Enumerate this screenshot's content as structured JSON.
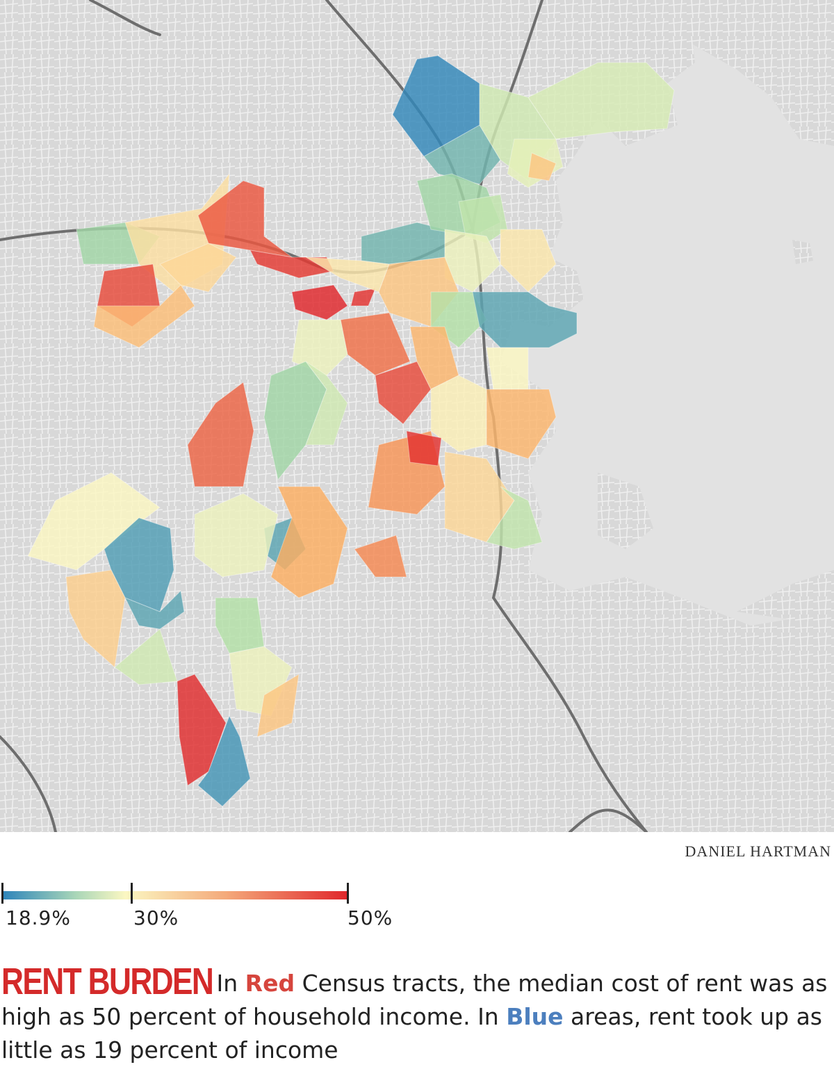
{
  "credit": "DANIEL HARTMAN",
  "legend": {
    "min_label": "18.9%",
    "mid_label": "30%",
    "max_label": "50%",
    "min_value": 18.9,
    "mid_value": 30,
    "max_value": 50,
    "colors": {
      "low": "#2b83ba",
      "mid": "#fbf7c2",
      "high": "#e0262b"
    }
  },
  "caption": {
    "title": "RENT BURDEN",
    "part1": "In ",
    "red_word": "Red",
    "part2": " Census tracts, the median cost of rent was as high as 50 percent of household income. In ",
    "blue_word": "Blue",
    "part3": " areas, rent took up as little as 19 percent of income"
  },
  "colors": {
    "title_red": "#d42a2a",
    "red_word": "#d6453d",
    "blue_word": "#4c7fbe",
    "water": "#e3e3e3",
    "land": "#d9d9d9",
    "road": "#ffffff",
    "highway": "#6f6f6f"
  },
  "tracts": [
    {
      "id": "charlestown-navy",
      "v": 19.2
    },
    {
      "id": "charlestown-w",
      "v": 22
    },
    {
      "id": "charlestown-c",
      "v": 27
    },
    {
      "id": "eastie-n",
      "v": 27.5
    },
    {
      "id": "eastie-c",
      "v": 28.5
    },
    {
      "id": "eastie-s",
      "v": 36
    },
    {
      "id": "brighton-w",
      "v": 24
    },
    {
      "id": "brighton-c",
      "v": 33
    },
    {
      "id": "brighton-sw",
      "v": 47
    },
    {
      "id": "brighton-s",
      "v": 37
    },
    {
      "id": "allston-n",
      "v": 46
    },
    {
      "id": "allston-e",
      "v": 48.5
    },
    {
      "id": "allston-c",
      "v": 34
    },
    {
      "id": "fenway-a",
      "v": 50
    },
    {
      "id": "fenway-b",
      "v": 49
    },
    {
      "id": "backbay",
      "v": 22
    },
    {
      "id": "beacon",
      "v": 32
    },
    {
      "id": "westend",
      "v": 24
    },
    {
      "id": "northend",
      "v": 26
    },
    {
      "id": "downtown",
      "v": 29
    },
    {
      "id": "southend-a",
      "v": 36
    },
    {
      "id": "southend-b",
      "v": 25
    },
    {
      "id": "seaport",
      "v": 21
    },
    {
      "id": "southie-w",
      "v": 30
    },
    {
      "id": "southie-e",
      "v": 32
    },
    {
      "id": "roxbury-a",
      "v": 44
    },
    {
      "id": "roxbury-b",
      "v": 47
    },
    {
      "id": "roxbury-c",
      "v": 38
    },
    {
      "id": "roxbury-d",
      "v": 29
    },
    {
      "id": "jp-a",
      "v": 24
    },
    {
      "id": "jp-b",
      "v": 27
    },
    {
      "id": "jp-c",
      "v": 45
    },
    {
      "id": "dorchester-a",
      "v": 31
    },
    {
      "id": "dorchester-b",
      "v": 38
    },
    {
      "id": "dorchester-c",
      "v": 41
    },
    {
      "id": "dorchester-d",
      "v": 49
    },
    {
      "id": "dorchester-e",
      "v": 34
    },
    {
      "id": "dorchester-f",
      "v": 26
    },
    {
      "id": "mattapan-a",
      "v": 42
    },
    {
      "id": "mattapan-b",
      "v": 21
    },
    {
      "id": "roslindale-a",
      "v": 29
    },
    {
      "id": "roslindale-b",
      "v": 25
    },
    {
      "id": "westrox-a",
      "v": 30
    },
    {
      "id": "westrox-b",
      "v": 20.5
    },
    {
      "id": "westrox-c",
      "v": 21
    },
    {
      "id": "westrox-d",
      "v": 39
    },
    {
      "id": "westrox-e",
      "v": 35
    },
    {
      "id": "hydepark-a",
      "v": 29
    },
    {
      "id": "hydepark-b",
      "v": 36
    },
    {
      "id": "hydepark-c",
      "v": 49.5
    },
    {
      "id": "hydepark-d",
      "v": 20
    },
    {
      "id": "hydepark-e",
      "v": 27
    }
  ]
}
